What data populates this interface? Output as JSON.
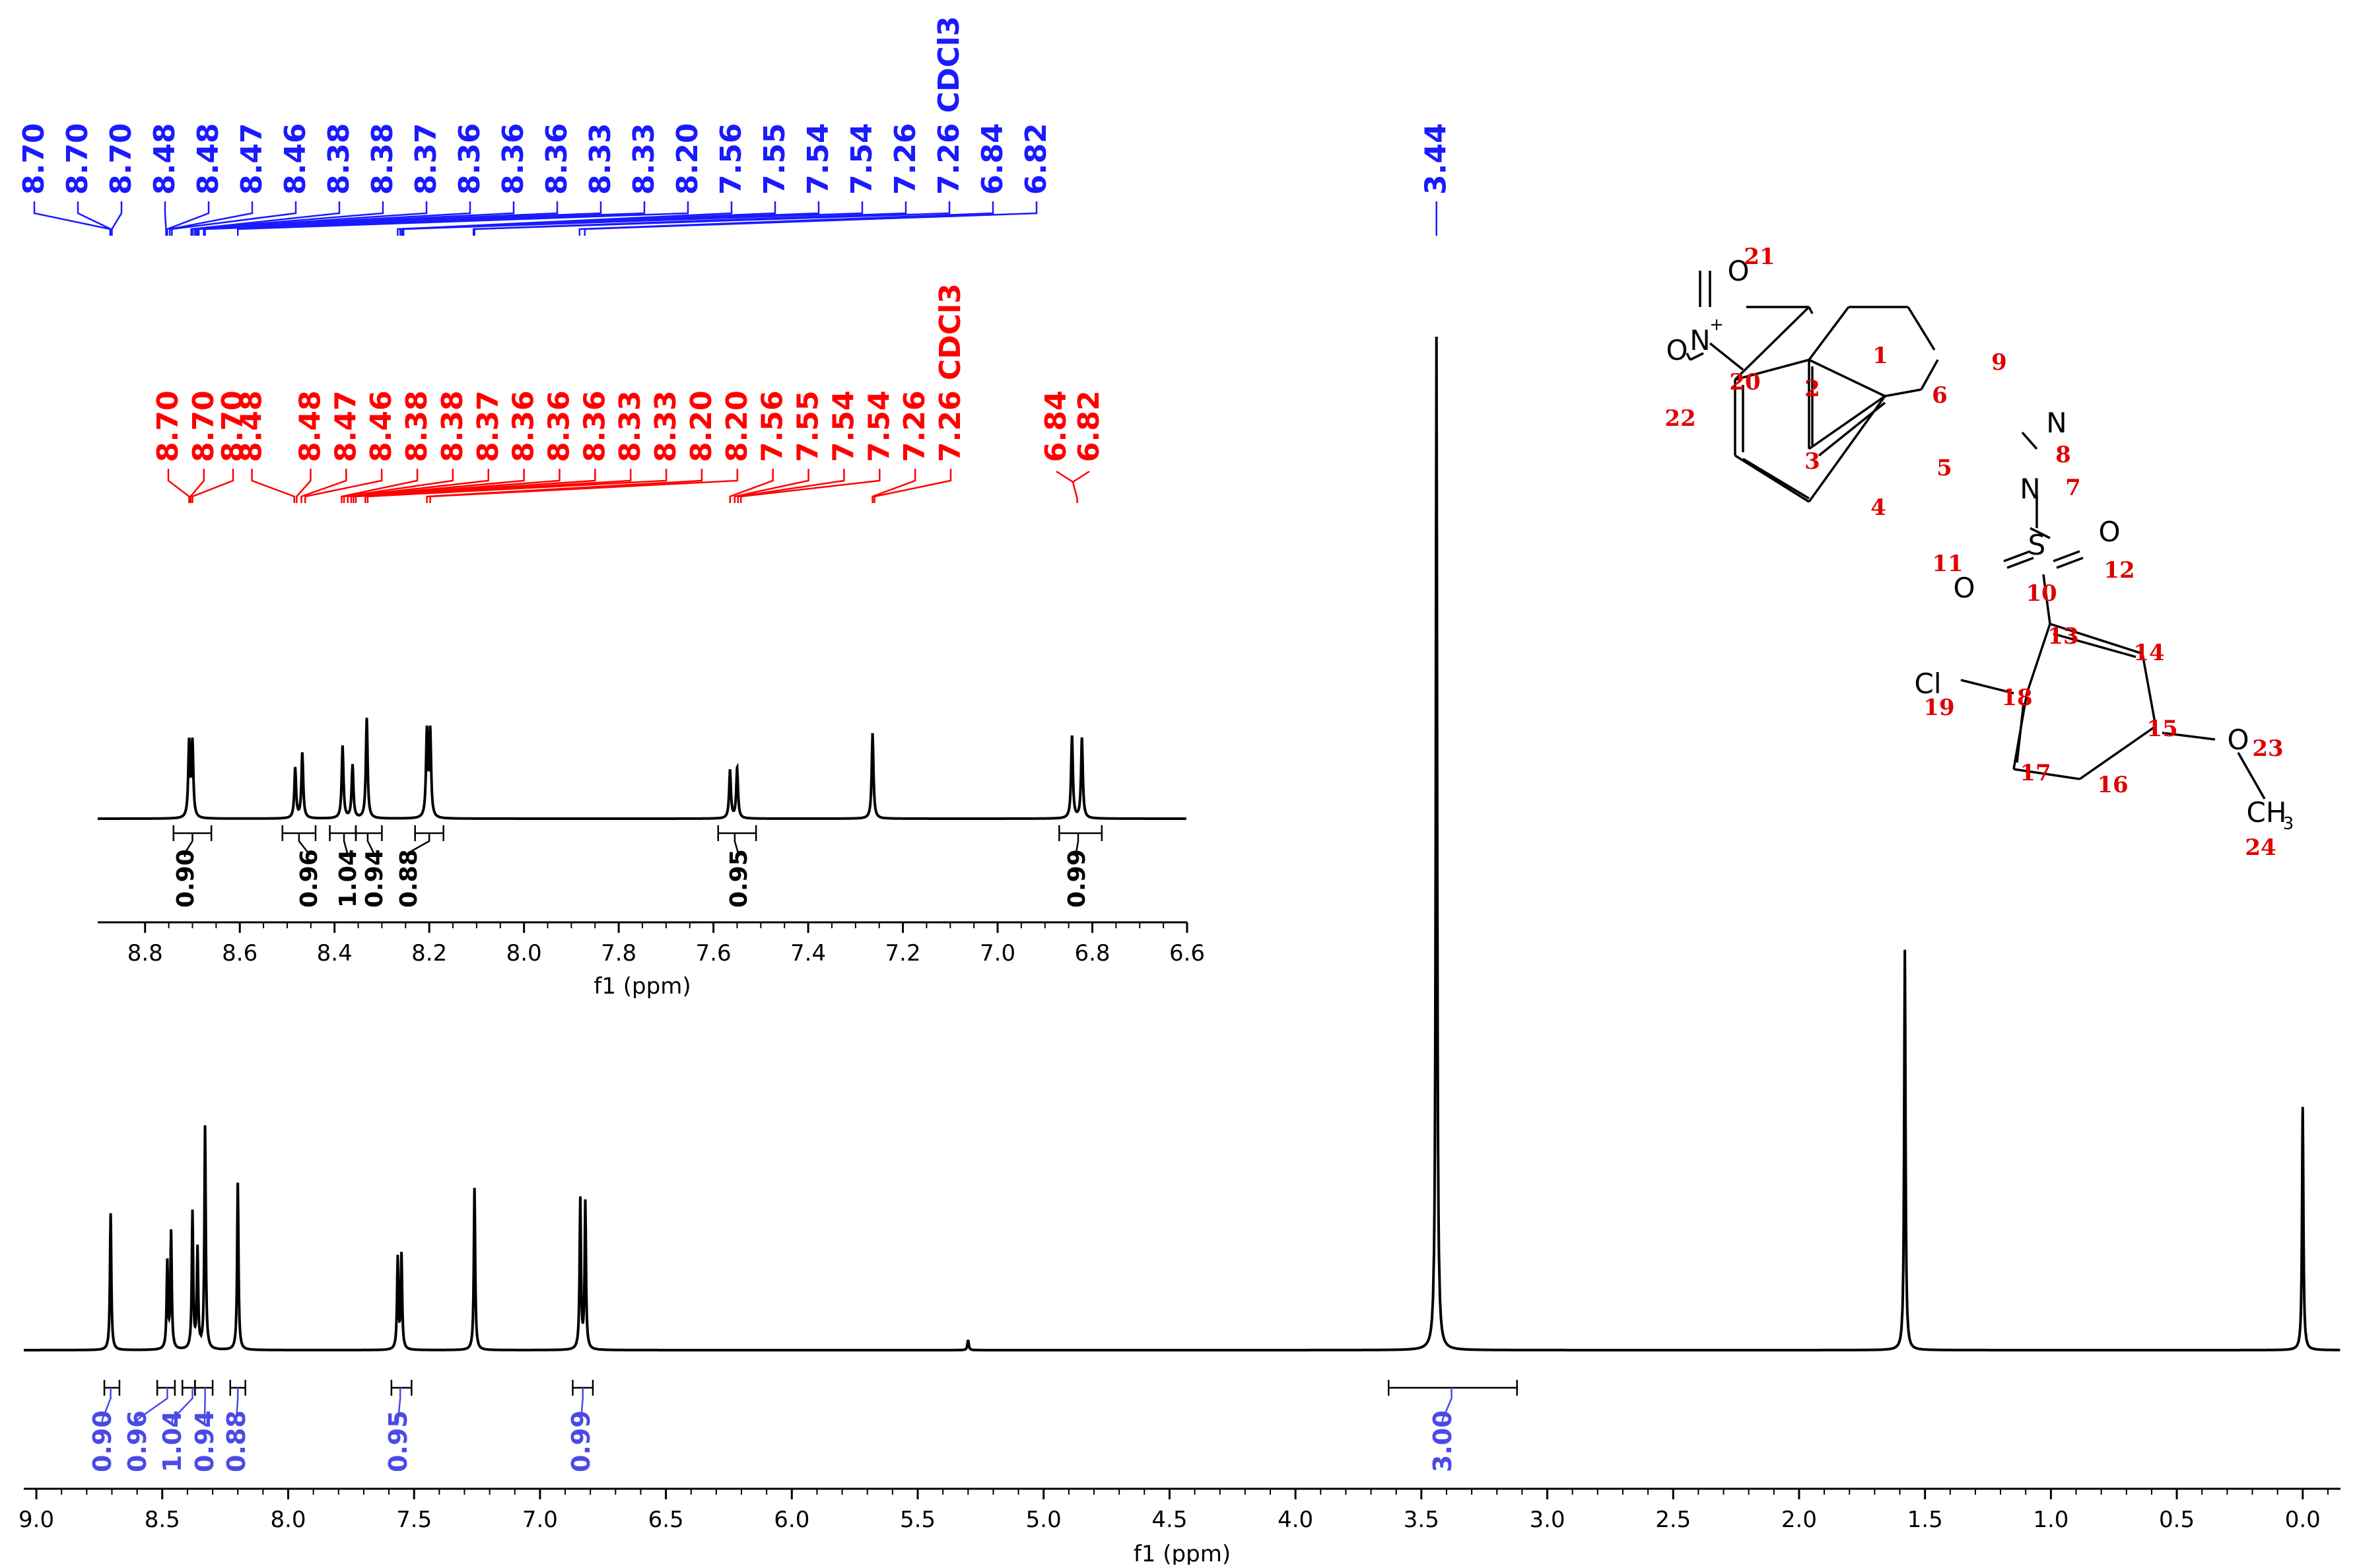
{
  "chart_data": {
    "type": "line",
    "main": {
      "xlabel": "f1 (ppm)",
      "xlim": [
        9.05,
        -0.15
      ],
      "xticks": [
        9.0,
        8.5,
        8.0,
        7.5,
        7.0,
        6.5,
        6.0,
        5.5,
        5.0,
        4.5,
        4.0,
        3.5,
        3.0,
        2.5,
        2.0,
        1.5,
        1.0,
        0.5,
        0.0
      ],
      "x_reversed": true,
      "peaks": [
        {
          "ppm": 8.705,
          "height": 0.135
        },
        {
          "ppm": 8.48,
          "height": 0.085
        },
        {
          "ppm": 8.465,
          "height": 0.115
        },
        {
          "ppm": 8.38,
          "height": 0.135
        },
        {
          "ppm": 8.36,
          "height": 0.098
        },
        {
          "ppm": 8.33,
          "height": 0.22
        },
        {
          "ppm": 8.2,
          "height": 0.165
        },
        {
          "ppm": 7.565,
          "height": 0.09
        },
        {
          "ppm": 7.55,
          "height": 0.093
        },
        {
          "ppm": 7.26,
          "height": 0.16
        },
        {
          "ppm": 6.84,
          "height": 0.148
        },
        {
          "ppm": 6.82,
          "height": 0.145
        },
        {
          "ppm": 5.3,
          "height": 0.01
        },
        {
          "ppm": 3.44,
          "height": 1.0
        },
        {
          "ppm": 1.58,
          "height": 0.395
        },
        {
          "ppm": 0.0,
          "height": 0.24
        }
      ],
      "integrals": [
        {
          "from": 8.73,
          "to": 8.67,
          "value": "0.90"
        },
        {
          "from": 8.52,
          "to": 8.45,
          "value": "0.96"
        },
        {
          "from": 8.42,
          "to": 8.37,
          "value": "1.04"
        },
        {
          "from": 8.37,
          "to": 8.3,
          "value": "0.94"
        },
        {
          "from": 8.23,
          "to": 8.17,
          "value": "0.88"
        },
        {
          "from": 7.59,
          "to": 7.51,
          "value": "0.95"
        },
        {
          "from": 6.87,
          "to": 6.79,
          "value": "0.99"
        },
        {
          "from": 3.63,
          "to": 3.12,
          "value": "3.00"
        }
      ]
    },
    "inset": {
      "xlabel": "f1 (ppm)",
      "xlim": [
        8.9,
        6.6
      ],
      "xticks": [
        8.8,
        8.6,
        8.4,
        8.2,
        8.0,
        7.8,
        7.6,
        7.4,
        7.2,
        7.0,
        6.8,
        6.6
      ],
      "peaks": [
        {
          "ppm": 8.707,
          "height": 0.74
        },
        {
          "ppm": 8.7,
          "height": 0.74
        },
        {
          "ppm": 8.483,
          "height": 0.5
        },
        {
          "ppm": 8.468,
          "height": 0.65
        },
        {
          "ppm": 8.383,
          "height": 0.72
        },
        {
          "ppm": 8.362,
          "height": 0.53
        },
        {
          "ppm": 8.332,
          "height": 1.0
        },
        {
          "ppm": 8.205,
          "height": 0.85
        },
        {
          "ppm": 8.198,
          "height": 0.85
        },
        {
          "ppm": 7.565,
          "height": 0.48
        },
        {
          "ppm": 7.55,
          "height": 0.5
        },
        {
          "ppm": 7.264,
          "height": 0.85
        },
        {
          "ppm": 6.843,
          "height": 0.82
        },
        {
          "ppm": 6.822,
          "height": 0.8
        }
      ],
      "integrals": [
        {
          "from": 8.74,
          "to": 8.66,
          "value": "0.90"
        },
        {
          "from": 8.51,
          "to": 8.44,
          "value": "0.96"
        },
        {
          "from": 8.41,
          "to": 8.355,
          "value": "1.04"
        },
        {
          "from": 8.355,
          "to": 8.3,
          "value": "0.94"
        },
        {
          "from": 8.23,
          "to": 8.17,
          "value": "0.88"
        },
        {
          "from": 7.59,
          "to": 7.51,
          "value": "0.95"
        },
        {
          "from": 6.87,
          "to": 6.78,
          "value": "0.99"
        }
      ]
    },
    "peak_labels_blue": {
      "labels": [
        "8.70",
        "8.70",
        "8.70",
        "8.48",
        "8.48",
        "8.47",
        "8.46",
        "8.38",
        "8.38",
        "8.37",
        "8.36",
        "8.36",
        "8.36",
        "8.33",
        "8.33",
        "8.20",
        "7.56",
        "7.55",
        "7.54",
        "7.54",
        "7.26",
        "7.26 CDCl3",
        "6.84",
        "6.82"
      ],
      "single": "3.44",
      "single_ppm": 3.44
    },
    "peak_labels_red": {
      "groups": [
        {
          "labels": [
            "8.70",
            "8.70",
            "8.70",
            "8.48",
            "8.48",
            "8.47",
            "8.46",
            "8.38",
            "8.38",
            "8.37",
            "8.36",
            "8.36",
            "8.36",
            "8.33",
            "8.33",
            "8.20",
            "8.20",
            "7.56",
            "7.55",
            "7.54",
            "7.54",
            "7.26",
            "7.26 CDCl3"
          ]
        },
        {
          "labels": [
            "6.84",
            "6.82"
          ]
        }
      ]
    },
    "structure": {
      "atom_labels": [
        "O",
        "N",
        "+",
        "O",
        "N",
        "N",
        "S",
        "O",
        "O",
        "Cl",
        "O",
        "CH",
        "3"
      ],
      "numbers": [
        "1",
        "2",
        "3",
        "4",
        "5",
        "6",
        "7",
        "8",
        "9",
        "10",
        "11",
        "12",
        "13",
        "14",
        "15",
        "16",
        "17",
        "18",
        "19",
        "20",
        "21",
        "22",
        "23",
        "24"
      ]
    },
    "colors": {
      "spectrum": "#000000",
      "blue_labels": "#1a1aff",
      "blue_integrals": "#4a4ae6",
      "red_labels": "#ff0000",
      "structure_numbers": "#e00000"
    }
  }
}
